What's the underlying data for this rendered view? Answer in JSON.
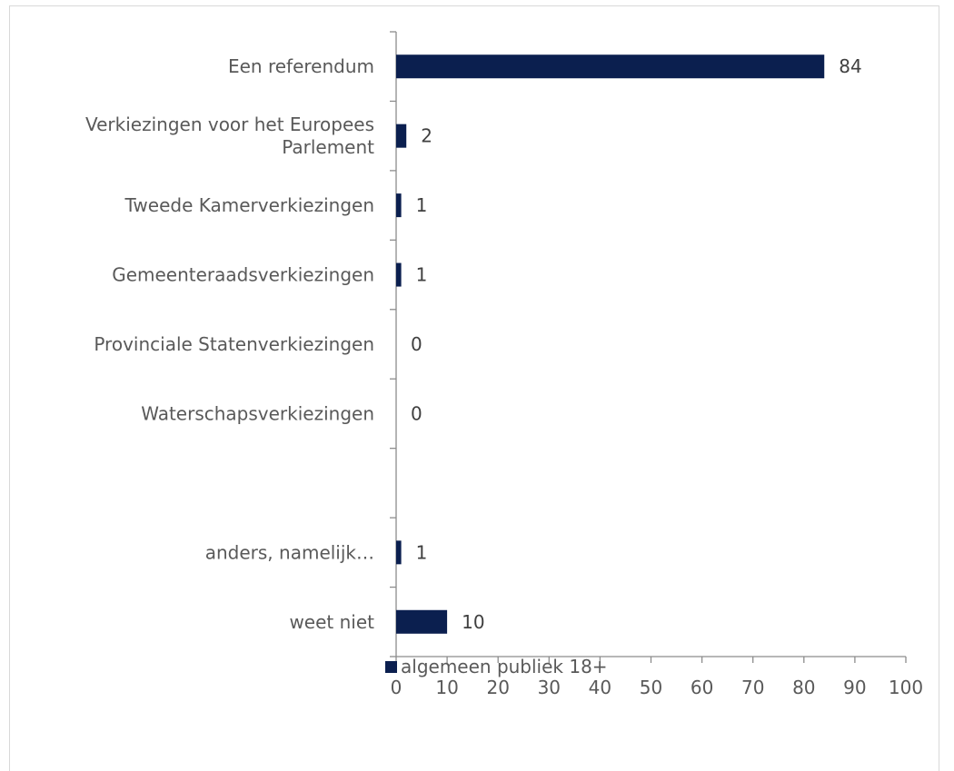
{
  "chart_data": {
    "type": "bar",
    "orientation": "horizontal",
    "categories": [
      [
        "Een referendum"
      ],
      [
        "Verkiezingen voor het Europees",
        "Parlement"
      ],
      [
        "Tweede Kamerverkiezingen"
      ],
      [
        "Gemeenteraadsverkiezingen"
      ],
      [
        "Provinciale Statenverkiezingen"
      ],
      [
        "Waterschapsverkiezingen"
      ],
      [
        ""
      ],
      [
        "anders, namelijk…"
      ],
      [
        "weet niet"
      ]
    ],
    "series": [
      {
        "name": "algemeen publiek 18+",
        "color": "#0b1f4f",
        "values": [
          84,
          2,
          1,
          1,
          0,
          0,
          null,
          1,
          10
        ]
      }
    ],
    "data_labels": [
      "84",
      "2",
      "1",
      "1",
      "0",
      "0",
      "",
      "1",
      "10"
    ],
    "xlim": [
      0,
      100
    ],
    "xticks": [
      "0",
      "10",
      "20",
      "30",
      "40",
      "50",
      "60",
      "70",
      "80",
      "90",
      "100"
    ],
    "grid": false,
    "legend_position": "bottom"
  }
}
